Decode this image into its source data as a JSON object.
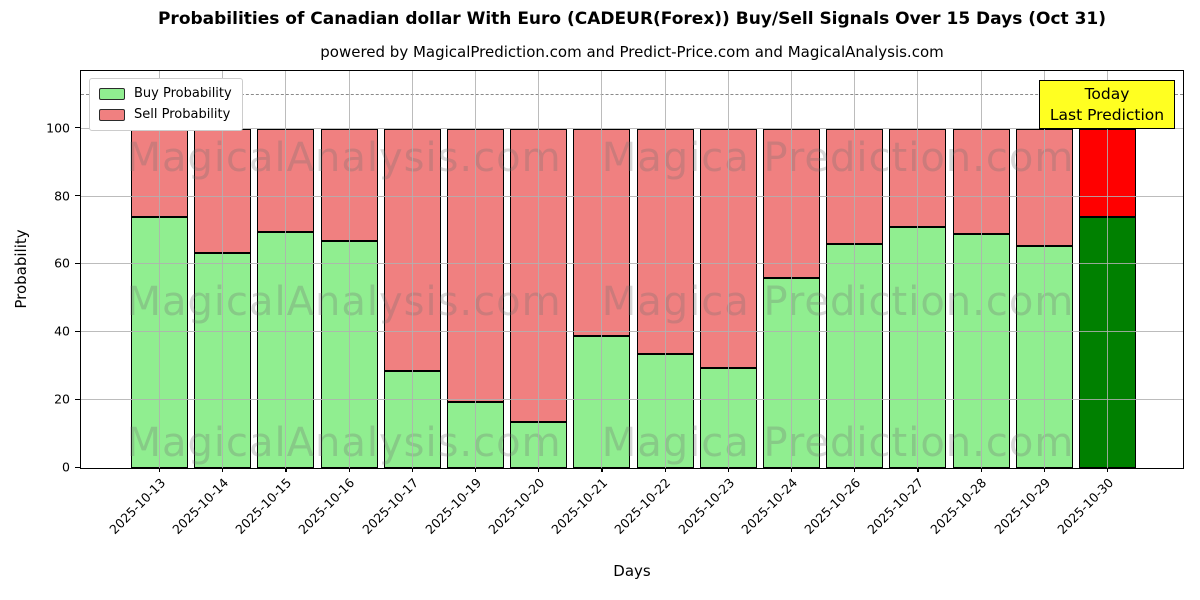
{
  "title": "Probabilities of Canadian dollar With Euro (CADEUR(Forex)) Buy/Sell Signals Over 15 Days (Oct 31)",
  "subtitle": "powered by MagicalPrediction.com and Predict-Price.com and MagicalAnalysis.com",
  "legend": {
    "buy_label": "Buy Probability",
    "sell_label": "Sell Probability"
  },
  "annotation": {
    "line1": "Today",
    "line2": "Last Prediction",
    "bg_color": "#FFFF21"
  },
  "watermarks": {
    "left": "MagicalAnalysis.com",
    "right": "Magica Prediction.com"
  },
  "axes": {
    "ylabel": "Probability",
    "xlabel": "Days"
  },
  "colors": {
    "buy": "#90EE90",
    "sell": "#F08080",
    "today_buy": "#008000",
    "today_sell": "#FF0000",
    "grid": "#b0b0b0",
    "dashed_line": "#8a8a8a"
  },
  "chart_data": {
    "type": "bar",
    "stacked": true,
    "title": "Probabilities of Canadian dollar With Euro (CADEUR(Forex)) Buy/Sell Signals Over 15 Days (Oct 31)",
    "xlabel": "Days",
    "ylabel": "Probability",
    "ylim": [
      0,
      116.7
    ],
    "yticks": [
      0,
      20,
      40,
      60,
      80,
      100
    ],
    "grid": true,
    "dashed_threshold_y": 110,
    "legend_position": "upper-left",
    "categories": [
      "2025-10-13",
      "2025-10-14",
      "2025-10-15",
      "2025-10-16",
      "2025-10-17",
      "2025-10-19",
      "2025-10-20",
      "2025-10-21",
      "2025-10-22",
      "2025-10-23",
      "2025-10-24",
      "2025-10-26",
      "2025-10-27",
      "2025-10-28",
      "2025-10-29",
      "2025-10-30"
    ],
    "series": [
      {
        "name": "Buy Probability",
        "values": [
          74,
          63.5,
          69.5,
          67,
          28.5,
          19.5,
          13.5,
          39,
          33.5,
          29.5,
          56,
          66,
          71,
          69,
          65.5,
          74
        ]
      },
      {
        "name": "Sell Probability",
        "values": [
          26,
          36.5,
          30.5,
          33,
          71.5,
          80.5,
          86.5,
          61,
          66.5,
          70.5,
          44,
          34,
          29,
          31,
          34.5,
          26
        ]
      }
    ],
    "today_index": 15,
    "today_annotation": "Today Last Prediction"
  }
}
